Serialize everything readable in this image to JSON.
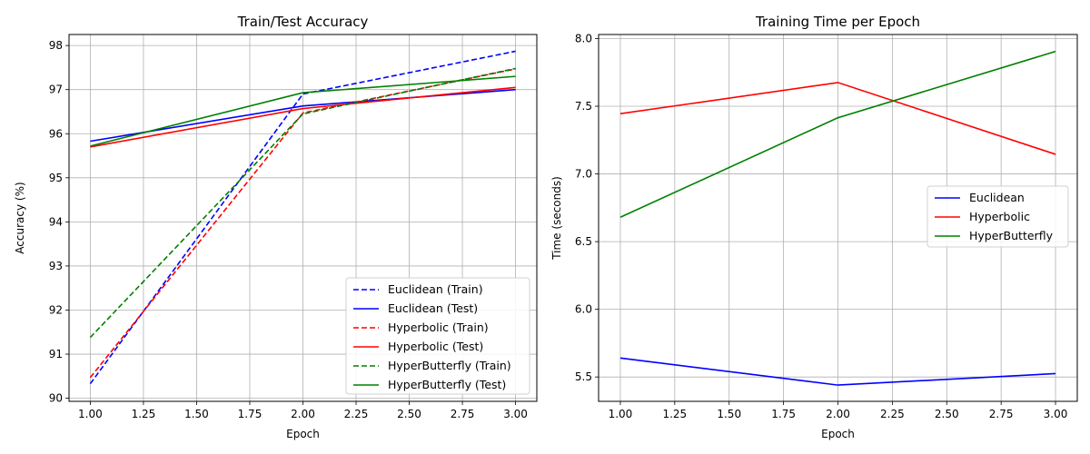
{
  "chart_data": [
    {
      "type": "line",
      "title": "Train/Test Accuracy",
      "xlabel": "Epoch",
      "ylabel": "Accuracy (%)",
      "xlim": [
        0.9,
        3.1
      ],
      "ylim": [
        89.93,
        98.25
      ],
      "xticks": [
        1.0,
        1.25,
        1.5,
        1.75,
        2.0,
        2.25,
        2.5,
        2.75,
        3.0
      ],
      "xtick_labels": [
        "1.00",
        "1.25",
        "1.50",
        "1.75",
        "2.00",
        "2.25",
        "2.50",
        "2.75",
        "3.00"
      ],
      "yticks": [
        90,
        91,
        92,
        93,
        94,
        95,
        96,
        97,
        98
      ],
      "ytick_labels": [
        "90",
        "91",
        "92",
        "93",
        "94",
        "95",
        "96",
        "97",
        "98"
      ],
      "grid": true,
      "legend_position": "bottom-right",
      "x": [
        1,
        2,
        3
      ],
      "series": [
        {
          "name": "Euclidean (Train)",
          "values": [
            90.33,
            96.9,
            97.87
          ],
          "color": "#0000ff",
          "dashed": true
        },
        {
          "name": "Euclidean (Test)",
          "values": [
            95.83,
            96.63,
            97.0
          ],
          "color": "#0000ff",
          "dashed": false
        },
        {
          "name": "Hyperbolic (Train)",
          "values": [
            90.47,
            96.47,
            97.47
          ],
          "color": "#ff0000",
          "dashed": true
        },
        {
          "name": "Hyperbolic (Test)",
          "values": [
            95.7,
            96.57,
            97.05
          ],
          "color": "#ff0000",
          "dashed": false
        },
        {
          "name": "HyperButterfly (Train)",
          "values": [
            91.38,
            96.45,
            97.48
          ],
          "color": "#008000",
          "dashed": true
        },
        {
          "name": "HyperButterfly (Test)",
          "values": [
            95.72,
            96.93,
            97.3
          ],
          "color": "#008000",
          "dashed": false
        }
      ]
    },
    {
      "type": "line",
      "title": "Training Time per Epoch",
      "xlabel": "Epoch",
      "ylabel": "Time (seconds)",
      "xlim": [
        0.9,
        3.1
      ],
      "ylim": [
        5.32,
        8.03
      ],
      "xticks": [
        1.0,
        1.25,
        1.5,
        1.75,
        2.0,
        2.25,
        2.5,
        2.75,
        3.0
      ],
      "xtick_labels": [
        "1.00",
        "1.25",
        "1.50",
        "1.75",
        "2.00",
        "2.25",
        "2.50",
        "2.75",
        "3.00"
      ],
      "yticks": [
        5.5,
        6.0,
        6.5,
        7.0,
        7.5,
        8.0
      ],
      "ytick_labels": [
        "5.5",
        "6.0",
        "6.5",
        "7.0",
        "7.5",
        "8.0"
      ],
      "grid": true,
      "legend_position": "center-right",
      "x": [
        1,
        2,
        3
      ],
      "series": [
        {
          "name": "Euclidean",
          "values": [
            5.64,
            5.44,
            5.525
          ],
          "color": "#0000ff",
          "dashed": false
        },
        {
          "name": "Hyperbolic",
          "values": [
            7.445,
            7.675,
            7.145
          ],
          "color": "#ff0000",
          "dashed": false
        },
        {
          "name": "HyperButterfly",
          "values": [
            6.68,
            7.415,
            7.905
          ],
          "color": "#008000",
          "dashed": false
        }
      ]
    }
  ]
}
